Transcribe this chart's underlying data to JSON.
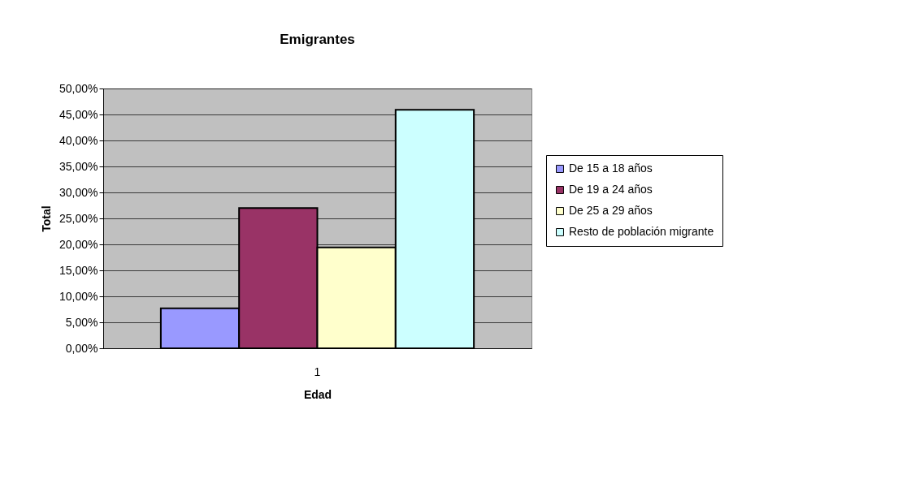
{
  "chart_data": {
    "type": "bar",
    "title": "Emigrantes",
    "xlabel": "Edad",
    "ylabel": "Total",
    "categories": [
      "1"
    ],
    "series": [
      {
        "name": "De 15 a 18 años",
        "color": "#9999ff",
        "values": [
          7.7
        ]
      },
      {
        "name": "De 19 a 24 años",
        "color": "#993366",
        "values": [
          27.0
        ]
      },
      {
        "name": "De 25 a 29 años",
        "color": "#ffffcc",
        "values": [
          19.4
        ]
      },
      {
        "name": "Resto de población migrante",
        "color": "#ccffff",
        "values": [
          45.9
        ]
      }
    ],
    "ylim": [
      0,
      50
    ],
    "yticks": [
      {
        "value": 0,
        "label": "0,00%"
      },
      {
        "value": 5,
        "label": "5,00%"
      },
      {
        "value": 10,
        "label": "10,00%"
      },
      {
        "value": 15,
        "label": "15,00%"
      },
      {
        "value": 20,
        "label": "20,00%"
      },
      {
        "value": 25,
        "label": "25,00%"
      },
      {
        "value": 30,
        "label": "30,00%"
      },
      {
        "value": 35,
        "label": "35,00%"
      },
      {
        "value": 40,
        "label": "40,00%"
      },
      {
        "value": 45,
        "label": "45,00%"
      },
      {
        "value": 50,
        "label": "50,00%"
      }
    ],
    "grid": "y",
    "legend": "right"
  }
}
